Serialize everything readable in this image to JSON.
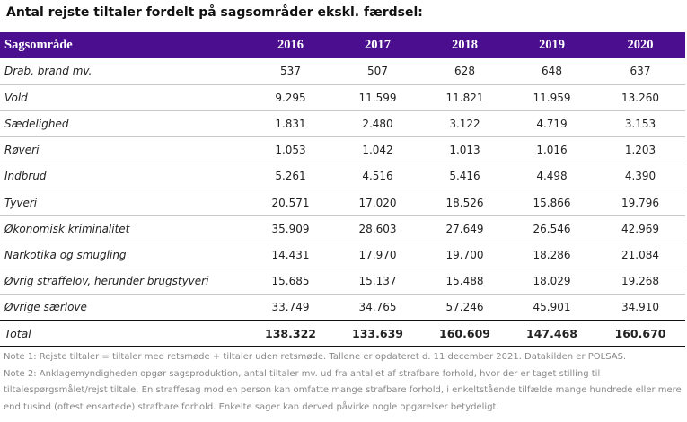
{
  "title": "Antal rejste tiltaler fordelt på sagsområder ekskl. færdsel:",
  "table": {
    "header": [
      "Sagsområde",
      "2016",
      "2017",
      "2018",
      "2019",
      "2020"
    ],
    "rows": [
      {
        "category": "Drab, brand mv.",
        "values": [
          "537",
          "507",
          "628",
          "648",
          "637"
        ]
      },
      {
        "category": "Vold",
        "values": [
          "9.295",
          "11.599",
          "11.821",
          "11.959",
          "13.260"
        ]
      },
      {
        "category": "Sædelighed",
        "values": [
          "1.831",
          "2.480",
          "3.122",
          "4.719",
          "3.153"
        ]
      },
      {
        "category": "Røveri",
        "values": [
          "1.053",
          "1.042",
          "1.013",
          "1.016",
          "1.203"
        ]
      },
      {
        "category": "Indbrud",
        "values": [
          "5.261",
          "4.516",
          "5.416",
          "4.498",
          "4.390"
        ]
      },
      {
        "category": "Tyveri",
        "values": [
          "20.571",
          "17.020",
          "18.526",
          "15.866",
          "19.796"
        ]
      },
      {
        "category": "Økonomisk kriminalitet",
        "values": [
          "35.909",
          "28.603",
          "27.649",
          "26.546",
          "42.969"
        ]
      },
      {
        "category": "Narkotika og smugling",
        "values": [
          "14.431",
          "17.970",
          "19.700",
          "18.286",
          "21.084"
        ]
      },
      {
        "category": "Øvrig straffelov, herunder brugstyveri",
        "values": [
          "15.685",
          "15.137",
          "15.488",
          "18.029",
          "19.268"
        ]
      },
      {
        "category": "Øvrige særlove",
        "values": [
          "33.749",
          "34.765",
          "57.246",
          "45.901",
          "34.910"
        ]
      }
    ],
    "total": {
      "category": "Total",
      "values": [
        "138.322",
        "133.639",
        "160.609",
        "147.468",
        "160.670"
      ]
    }
  },
  "notes": {
    "note1": "Note 1: Rejste tiltaler = tiltaler med retsmøde + tiltaler uden retsmøde. Tallene er opdateret d. 11 december 2021. Datakilden er POLSAS.",
    "note2": "Note 2: Anklagemyndigheden opgør sagsproduktion, antal tiltaler mv. ud fra antallet af strafbare forhold, hvor der er taget stilling til tiltalespørgsmålet/rejst tiltale. En straffesag mod en person kan omfatte mange strafbare forhold, i enkeltstående tilfælde mange hundrede eller mere end tusind (oftest ensartede) strafbare forhold. Enkelte sager kan derved påvirke nogle opgørelser betydeligt."
  },
  "colors": {
    "header_bg": "#4b0e8e",
    "header_text": "#ffffff",
    "note_text": "#888888"
  }
}
